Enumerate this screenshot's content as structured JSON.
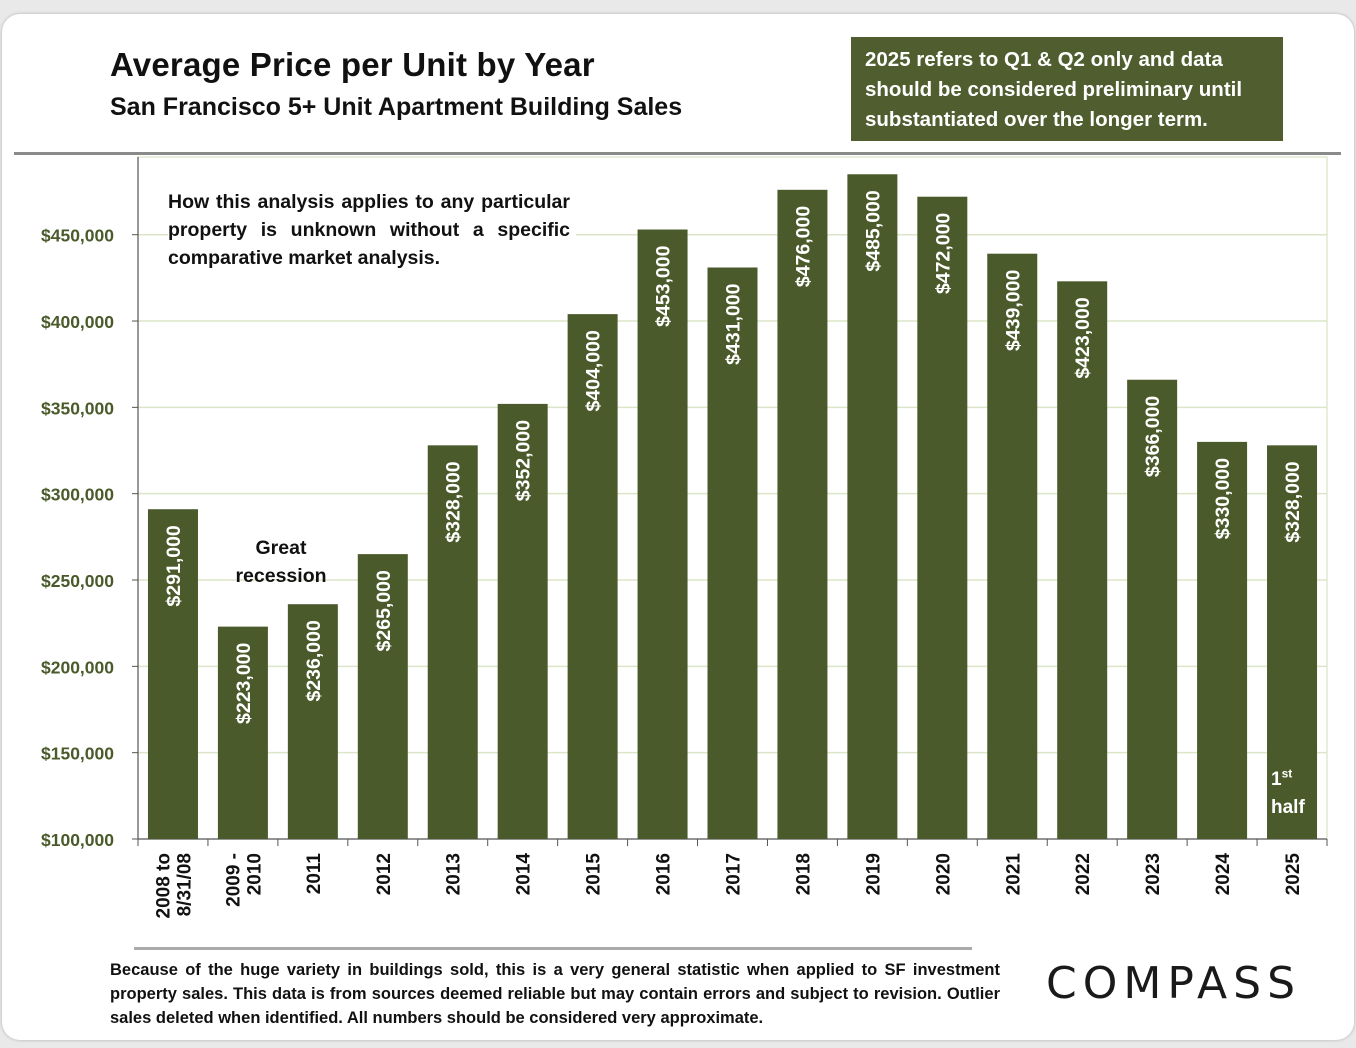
{
  "chart_data": {
    "type": "bar",
    "title": "Average Price per Unit by Year",
    "subtitle": "San Francisco 5+ Unit Apartment Building Sales",
    "categories": [
      [
        "2008 to",
        "8/31/08"
      ],
      [
        "2009 -",
        "2010"
      ],
      [
        "2011"
      ],
      [
        "2012"
      ],
      [
        "2013"
      ],
      [
        "2014"
      ],
      [
        "2015"
      ],
      [
        "2016"
      ],
      [
        "2017"
      ],
      [
        "2018"
      ],
      [
        "2019"
      ],
      [
        "2020"
      ],
      [
        "2021"
      ],
      [
        "2022"
      ],
      [
        "2023"
      ],
      [
        "2024"
      ],
      [
        "2025"
      ]
    ],
    "values": [
      291000,
      223000,
      236000,
      265000,
      328000,
      352000,
      404000,
      453000,
      431000,
      476000,
      485000,
      472000,
      439000,
      423000,
      366000,
      330000,
      328000
    ],
    "data_labels": [
      "$291,000",
      "$223,000",
      "$236,000",
      "$265,000",
      "$328,000",
      "$352,000",
      "$404,000",
      "$453,000",
      "$431,000",
      "$476,000",
      "$485,000",
      "$472,000",
      "$439,000",
      "$423,000",
      "$366,000",
      "$330,000",
      "$328,000"
    ],
    "ylim": [
      100000,
      495000
    ],
    "y_ticks": [
      100000,
      150000,
      200000,
      250000,
      300000,
      350000,
      400000,
      450000
    ],
    "y_tick_labels": [
      "$100,000",
      "$150,000",
      "$200,000",
      "$250,000",
      "$300,000",
      "$350,000",
      "$400,000",
      "$450,000"
    ],
    "xlabel": "",
    "ylabel": "",
    "grid": true,
    "colors": {
      "bar": "#4a5a2b",
      "ytick": "#4a5a2b",
      "grid": "#dbe6c8"
    },
    "annotations": {
      "recession": "Great recession",
      "half_prefix": "1",
      "half_sup": "st",
      "half_word": "half"
    }
  },
  "note_box": "2025 refers to Q1 & Q2 only and data should be considered preliminary until substantiated over the longer term.",
  "caveat": "How this analysis applies to any particular property is unknown without a specific comparative market analysis.",
  "footnote": "Because of the huge variety in buildings sold, this is a very general statistic when applied to SF investment property sales. This data is from sources deemed reliable but may contain errors and subject to revision. Outlier sales deleted when identified. All numbers should be considered very approximate.",
  "logo": "COMPASS",
  "colors": {
    "note_box_bg": "#4f5d2f"
  }
}
